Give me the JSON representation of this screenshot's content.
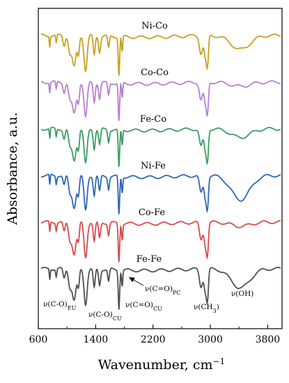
{
  "chart_data": {
    "type": "line",
    "title": "",
    "xlabel": "Wavenumber, cm",
    "xlabel_superscript": "−1",
    "ylabel": "Absorbance, a.u.",
    "xlim": [
      600,
      4000
    ],
    "x_ticks": [
      600,
      1400,
      2200,
      3000,
      3800
    ],
    "y_ticks_shown": false,
    "grid": false,
    "legend": "none",
    "series": [
      {
        "name": "Ni-Co",
        "color": "#c8a020",
        "offset": 5,
        "oh_depth": 0.4
      },
      {
        "name": "Co-Co",
        "color": "#b77fd2",
        "offset": 4,
        "oh_depth": 0.12
      },
      {
        "name": "Fe-Co",
        "color": "#3c9c64",
        "offset": 3,
        "oh_depth": 0.25
      },
      {
        "name": "Ni-Fe",
        "color": "#2e66b8",
        "offset": 2,
        "oh_depth": 0.7
      },
      {
        "name": "Co-Fe",
        "color": "#d84a4a",
        "offset": 1,
        "oh_depth": 0.12
      },
      {
        "name": "Fe-Fe",
        "color": "#505050",
        "offset": 0,
        "oh_depth": 0.55
      }
    ],
    "bands": [
      {
        "center": 760,
        "depth": 0.3,
        "width": 6
      },
      {
        "center": 850,
        "depth": 0.22,
        "width": 8
      },
      {
        "center": 960,
        "depth": 0.28,
        "width": 15
      },
      {
        "center": 1040,
        "depth": 0.45,
        "width": 20
      },
      {
        "center": 1100,
        "depth": 0.9,
        "width": 28
      },
      {
        "center": 1160,
        "depth": 0.5,
        "width": 14
      },
      {
        "center": 1260,
        "depth": 1.0,
        "width": 22
      },
      {
        "center": 1380,
        "depth": 0.55,
        "width": 14
      },
      {
        "center": 1455,
        "depth": 0.45,
        "width": 14
      },
      {
        "center": 1580,
        "depth": 0.35,
        "width": 12
      },
      {
        "center": 1725,
        "depth": 1.1,
        "width": 10
      },
      {
        "center": 1770,
        "depth": 0.45,
        "width": 8
      },
      {
        "center": 2870,
        "depth": 0.5,
        "width": 22
      },
      {
        "center": 2930,
        "depth": 0.6,
        "width": 18
      },
      {
        "center": 2960,
        "depth": 0.8,
        "width": 14
      }
    ],
    "oh_band": {
      "center": 3420,
      "width": 130
    },
    "annotations": {
      "v_co_eu": {
        "main": "ν(C-O)",
        "sub": "EU"
      },
      "v_co_cu": {
        "main": "ν(C-O)",
        "sub": "CU"
      },
      "v_ceo_cu": {
        "main": "ν(C=O)",
        "sub": "CU"
      },
      "v_ceo_pc": {
        "main": "ν(C=O)",
        "sub": "PC"
      },
      "v_ch3": {
        "main": "ν(CH",
        "sub": "3",
        "tail": ")"
      },
      "v_oh": {
        "main": "ν(OH)"
      }
    }
  }
}
